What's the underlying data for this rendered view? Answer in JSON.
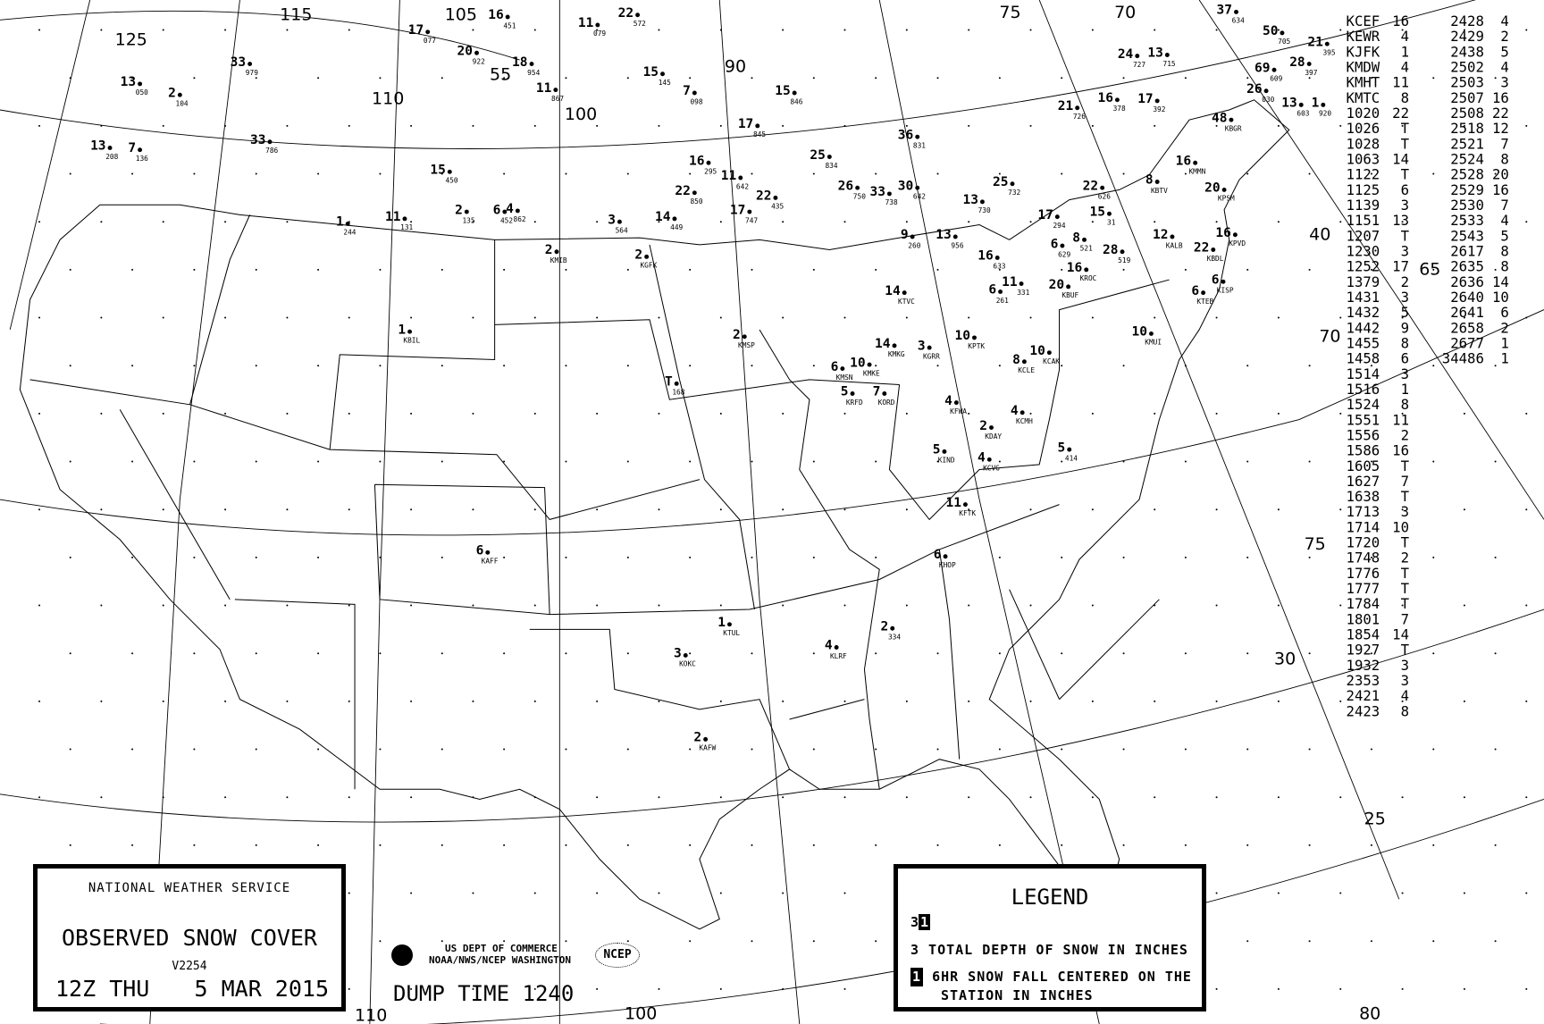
{
  "title_box": {
    "agency": "NATIONAL WEATHER SERVICE",
    "product": "OBSERVED SNOW COVER",
    "version": "V2254",
    "time": "12Z THU",
    "date": "5 MAR 2015"
  },
  "agency_block": {
    "line1": "US DEPT OF COMMERCE",
    "line2": "NOAA/NWS/NCEP WASHINGTON",
    "ncep_logo": "NCEP",
    "dump_time": "DUMP TIME 1240"
  },
  "legend": {
    "title": "LEGEND",
    "sample_depth": "3",
    "sample_fall": "1",
    "depth_text": "3 TOTAL DEPTH OF SNOW IN INCHES",
    "fall_text_1": "6HR SNOW FALL CENTERED ON THE",
    "fall_text_2": "STATION IN INCHES"
  },
  "degree_labels": [
    "125",
    "115",
    "105",
    "55",
    "100",
    "90",
    "110",
    "75",
    "70",
    "40",
    "65",
    "70",
    "75",
    "30",
    "25",
    "80",
    "100",
    "110"
  ],
  "stations": [
    {
      "v": "2",
      "id": "KMIB"
    },
    {
      "v": "2",
      "id": "KGFK"
    },
    {
      "v": "1",
      "id": "KBIL"
    },
    {
      "v": "2",
      "id": "KMSP"
    },
    {
      "v": "T",
      "id": "168"
    },
    {
      "v": "14",
      "id": "KTVC"
    },
    {
      "v": "10",
      "id": "KMKE"
    },
    {
      "v": "6",
      "id": "KMSN"
    },
    {
      "v": "5",
      "id": "KRFD"
    },
    {
      "v": "7",
      "id": "KORD"
    },
    {
      "v": "14",
      "id": "KMKG"
    },
    {
      "v": "3",
      "id": "KGRR"
    },
    {
      "v": "10",
      "id": "KPTK"
    },
    {
      "v": "4",
      "id": "KFWA"
    },
    {
      "v": "4",
      "id": "KCMH"
    },
    {
      "v": "2",
      "id": "KDAY"
    },
    {
      "v": "5",
      "id": "KIND"
    },
    {
      "v": "4",
      "id": "KCVG"
    },
    {
      "v": "11",
      "id": "KFTK"
    },
    {
      "v": "6",
      "id": "KHOP"
    },
    {
      "v": "8",
      "id": "KCLE"
    },
    {
      "v": "10",
      "id": "KCAK"
    },
    {
      "v": "5",
      "id": "414"
    },
    {
      "v": "10",
      "id": "KMUI"
    },
    {
      "v": "6",
      "id": "KAFF"
    },
    {
      "v": "1",
      "id": "KTUL"
    },
    {
      "v": "3",
      "id": "KOKC"
    },
    {
      "v": "4",
      "id": "KLRF"
    },
    {
      "v": "2",
      "id": "334"
    },
    {
      "v": "2",
      "id": "KAFW"
    },
    {
      "v": "20",
      "id": "KBUF"
    },
    {
      "v": "16",
      "id": "KROC"
    },
    {
      "v": "12",
      "id": "KALB"
    },
    {
      "v": "22",
      "id": "KBDL"
    },
    {
      "v": "16",
      "id": "KPVD"
    },
    {
      "v": "6",
      "id": "KISP"
    },
    {
      "v": "6",
      "id": "KTEB"
    },
    {
      "v": "20",
      "id": "KPSM"
    },
    {
      "v": "48",
      "id": "KBGR"
    },
    {
      "v": "16",
      "id": "KMMN"
    },
    {
      "v": "8",
      "id": "KBTV"
    },
    {
      "v": "36",
      "id": "831"
    },
    {
      "v": "25",
      "id": "834"
    },
    {
      "v": "26",
      "id": "750"
    },
    {
      "v": "33",
      "id": "738"
    },
    {
      "v": "30",
      "id": "642"
    },
    {
      "v": "13",
      "id": "730"
    },
    {
      "v": "25",
      "id": "732"
    },
    {
      "v": "17",
      "id": "294"
    },
    {
      "v": "22",
      "id": "626"
    },
    {
      "v": "15",
      "id": "31"
    },
    {
      "v": "28",
      "id": "519"
    },
    {
      "v": "6",
      "id": "629"
    },
    {
      "v": "8",
      "id": "521"
    },
    {
      "v": "13",
      "id": "956"
    },
    {
      "v": "9",
      "id": "260"
    },
    {
      "v": "16",
      "id": "633"
    },
    {
      "v": "6",
      "id": "261"
    },
    {
      "v": "11",
      "id": "331"
    },
    {
      "v": "21",
      "id": "726"
    },
    {
      "v": "16",
      "id": "378"
    },
    {
      "v": "17",
      "id": "392"
    },
    {
      "v": "24",
      "id": "727"
    },
    {
      "v": "13",
      "id": "715"
    },
    {
      "v": "37",
      "id": "634"
    },
    {
      "v": "50",
      "id": "705"
    },
    {
      "v": "21",
      "id": "395"
    },
    {
      "v": "69",
      "id": "609"
    },
    {
      "v": "28",
      "id": "397"
    },
    {
      "v": "26",
      "id": "030"
    },
    {
      "v": "13",
      "id": "603"
    },
    {
      "v": "1",
      "id": "920"
    },
    {
      "v": "15",
      "id": "846"
    },
    {
      "v": "17",
      "id": "845"
    },
    {
      "v": "7",
      "id": "098"
    },
    {
      "v": "15",
      "id": "145"
    },
    {
      "v": "16",
      "id": "295"
    },
    {
      "v": "11",
      "id": "642"
    },
    {
      "v": "22",
      "id": "435"
    },
    {
      "v": "17",
      "id": "747"
    },
    {
      "v": "14",
      "id": "449"
    },
    {
      "v": "22",
      "id": "850"
    },
    {
      "v": "33",
      "id": "979"
    },
    {
      "v": "13",
      "id": "050"
    },
    {
      "v": "2",
      "id": "104"
    },
    {
      "v": "13",
      "id": "208"
    },
    {
      "v": "7",
      "id": "136"
    },
    {
      "v": "33",
      "id": "786"
    },
    {
      "v": "17",
      "id": "077"
    },
    {
      "v": "20",
      "id": "922"
    },
    {
      "v": "16",
      "id": "451"
    },
    {
      "v": "11",
      "id": "079"
    },
    {
      "v": "22",
      "id": "572"
    },
    {
      "v": "18",
      "id": "954"
    },
    {
      "v": "11",
      "id": "867"
    },
    {
      "v": "1",
      "id": "244"
    },
    {
      "v": "11",
      "id": "131"
    },
    {
      "v": "2",
      "id": "135"
    },
    {
      "v": "4",
      "id": "862"
    },
    {
      "v": "3",
      "id": "564"
    },
    {
      "v": "15",
      "id": "450"
    },
    {
      "v": "6",
      "id": "452"
    }
  ],
  "table": {
    "col1": [
      [
        "KCEF",
        "16"
      ],
      [
        "KEWR",
        "4"
      ],
      [
        "KJFK",
        "1"
      ],
      [
        "KMDW",
        "4"
      ],
      [
        "KMHT",
        "11"
      ],
      [
        "KMTC",
        "8"
      ],
      [
        "1020",
        "22"
      ],
      [
        "1026",
        "T"
      ],
      [
        "1028",
        "T"
      ],
      [
        "1063",
        "14"
      ],
      [
        "1122",
        "T"
      ],
      [
        "1125",
        "6"
      ],
      [
        "1139",
        "3"
      ],
      [
        "1151",
        "13"
      ],
      [
        "1207",
        "T"
      ],
      [
        "1230",
        "3"
      ],
      [
        "1252",
        "17"
      ],
      [
        "1379",
        "2"
      ],
      [
        "1431",
        "3"
      ],
      [
        "1432",
        "5"
      ],
      [
        "1442",
        "9"
      ],
      [
        "1455",
        "8"
      ],
      [
        "1458",
        "6"
      ],
      [
        "1514",
        "3"
      ],
      [
        "1516",
        "1"
      ],
      [
        "1524",
        "8"
      ],
      [
        "1551",
        "11"
      ],
      [
        "1556",
        "2"
      ],
      [
        "1586",
        "16"
      ],
      [
        "1605",
        "T"
      ],
      [
        "1627",
        "7"
      ],
      [
        "1638",
        "T"
      ],
      [
        "1713",
        "3"
      ],
      [
        "1714",
        "10"
      ],
      [
        "1720",
        "T"
      ],
      [
        "1748",
        "2"
      ],
      [
        "1776",
        "T"
      ],
      [
        "1777",
        "T"
      ],
      [
        "1784",
        "T"
      ],
      [
        "1801",
        "7"
      ],
      [
        "1854",
        "14"
      ],
      [
        "1927",
        "T"
      ],
      [
        "1932",
        "3"
      ],
      [
        "2353",
        "3"
      ],
      [
        "2421",
        "4"
      ],
      [
        "2423",
        "8"
      ]
    ],
    "col2": [
      [
        "2428",
        "4"
      ],
      [
        "2429",
        "2"
      ],
      [
        "2438",
        "5"
      ],
      [
        "2502",
        "4"
      ],
      [
        "2503",
        "3"
      ],
      [
        "2507",
        "16"
      ],
      [
        "2508",
        "22"
      ],
      [
        "2518",
        "12"
      ],
      [
        "2521",
        "7"
      ],
      [
        "2524",
        "8"
      ],
      [
        "2528",
        "20"
      ],
      [
        "2529",
        "16"
      ],
      [
        "2530",
        "7"
      ],
      [
        "2533",
        "4"
      ],
      [
        "2543",
        "5"
      ],
      [
        "2617",
        "8"
      ],
      [
        "2635",
        "8"
      ],
      [
        "2636",
        "14"
      ],
      [
        "2640",
        "10"
      ],
      [
        "2641",
        "6"
      ],
      [
        "2658",
        "2"
      ],
      [
        "2677",
        "1"
      ],
      [
        "34486",
        "1"
      ]
    ]
  }
}
